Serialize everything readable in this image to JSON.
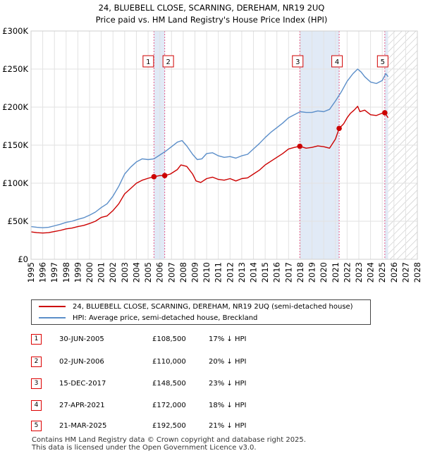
{
  "colors": {
    "price_line": "#cc0000",
    "hpi_line": "#5b8ec9",
    "marker_line": "#e35b8a",
    "shade": "#dce6f5"
  },
  "chart_data": {
    "type": "line",
    "title": "24, BLUEBELL CLOSE, SCARNING, DEREHAM, NR19 2UQ",
    "subtitle": "Price paid vs. HM Land Registry's House Price Index (HPI)",
    "xlim": [
      1995,
      2028
    ],
    "ylim": [
      0,
      300000
    ],
    "y_ticks": [
      {
        "value": 0,
        "label": "£0"
      },
      {
        "value": 50000,
        "label": "£50K"
      },
      {
        "value": 100000,
        "label": "£100K"
      },
      {
        "value": 150000,
        "label": "£150K"
      },
      {
        "value": 200000,
        "label": "£200K"
      },
      {
        "value": 250000,
        "label": "£250K"
      },
      {
        "value": 300000,
        "label": "£300K"
      }
    ],
    "x_ticks": [
      "1995",
      "1996",
      "1997",
      "1998",
      "1999",
      "2000",
      "2001",
      "2002",
      "2003",
      "2004",
      "2005",
      "2006",
      "2007",
      "2008",
      "2009",
      "2010",
      "2011",
      "2012",
      "2013",
      "2014",
      "2015",
      "2016",
      "2017",
      "2018",
      "2019",
      "2020",
      "2021",
      "2022",
      "2023",
      "2024",
      "2025",
      "2026",
      "2027",
      "2028"
    ],
    "forecast_start": 2025.5,
    "series": [
      {
        "name": "24, BLUEBELL CLOSE, SCARNING, DEREHAM, NR19 2UQ (semi-detached house)",
        "x": [
          1995.0,
          1995.5,
          1996.0,
          1996.5,
          1997.0,
          1997.5,
          1998.0,
          1998.5,
          1999.0,
          1999.5,
          2000.0,
          2000.5,
          2001.0,
          2001.5,
          2002.0,
          2002.5,
          2003.0,
          2003.5,
          2004.0,
          2004.5,
          2005.0,
          2005.5,
          2006.0,
          2006.42,
          2006.9,
          2007.5,
          2007.8,
          2008.3,
          2008.8,
          2009.1,
          2009.5,
          2010.0,
          2010.5,
          2011.0,
          2011.5,
          2012.0,
          2012.5,
          2013.0,
          2013.5,
          2014.0,
          2014.5,
          2015.0,
          2015.5,
          2016.0,
          2016.5,
          2017.0,
          2017.5,
          2017.96,
          2018.5,
          2019.0,
          2019.5,
          2020.0,
          2020.5,
          2021.0,
          2021.32,
          2021.7,
          2022.0,
          2022.3,
          2022.6,
          2022.9,
          2023.1,
          2023.5,
          2024.0,
          2024.5,
          2025.0,
          2025.22,
          2025.5
        ],
        "values": [
          36000,
          35000,
          34500,
          35000,
          36500,
          38000,
          40000,
          41000,
          43000,
          44500,
          47000,
          50000,
          55000,
          57000,
          64000,
          73000,
          86000,
          93000,
          100000,
          104000,
          106500,
          108500,
          110000,
          110000,
          112000,
          118000,
          124000,
          122000,
          112000,
          103000,
          101000,
          106000,
          108000,
          105000,
          104000,
          106000,
          103000,
          106000,
          107000,
          112000,
          117000,
          124000,
          129000,
          134000,
          139000,
          145000,
          147000,
          148500,
          146000,
          147000,
          149000,
          148000,
          146000,
          158000,
          172000,
          178000,
          186000,
          192000,
          196000,
          201000,
          194000,
          196000,
          190000,
          189000,
          192000,
          192500,
          186000
        ]
      },
      {
        "name": "HPI: Average price, semi-detached house, Breckland",
        "x": [
          1995.0,
          1995.5,
          1996.0,
          1996.5,
          1997.0,
          1997.5,
          1998.0,
          1998.5,
          1999.0,
          1999.5,
          2000.0,
          2000.5,
          2001.0,
          2001.5,
          2002.0,
          2002.5,
          2003.0,
          2003.5,
          2004.0,
          2004.5,
          2005.0,
          2005.5,
          2006.0,
          2006.5,
          2007.0,
          2007.5,
          2007.9,
          2008.3,
          2008.8,
          2009.2,
          2009.6,
          2010.0,
          2010.5,
          2011.0,
          2011.5,
          2012.0,
          2012.5,
          2013.0,
          2013.5,
          2014.0,
          2014.5,
          2015.0,
          2015.5,
          2016.0,
          2016.5,
          2017.0,
          2017.5,
          2018.0,
          2018.5,
          2019.0,
          2019.5,
          2020.0,
          2020.5,
          2021.0,
          2021.5,
          2022.0,
          2022.5,
          2022.9,
          2023.2,
          2023.5,
          2024.0,
          2024.5,
          2025.0,
          2025.3,
          2025.5
        ],
        "values": [
          43000,
          42000,
          41500,
          42000,
          44000,
          46000,
          48500,
          50000,
          52500,
          54500,
          58000,
          62000,
          68000,
          73000,
          83000,
          96000,
          112000,
          121000,
          128000,
          132000,
          131000,
          132000,
          137000,
          142000,
          148000,
          154000,
          156000,
          149000,
          138000,
          131000,
          132000,
          139000,
          140000,
          136000,
          134000,
          135000,
          133000,
          136000,
          138000,
          145000,
          152000,
          160000,
          167000,
          173000,
          179000,
          186000,
          190000,
          194000,
          193000,
          193000,
          195000,
          194000,
          197000,
          208000,
          220000,
          234000,
          244000,
          250000,
          246000,
          240000,
          233000,
          231000,
          235000,
          244000,
          240000
        ]
      }
    ],
    "sales": [
      {
        "id": "1",
        "x": 2005.5,
        "value": 108500
      },
      {
        "id": "2",
        "x": 2006.42,
        "value": 110000
      },
      {
        "id": "3",
        "x": 2017.96,
        "value": 148500
      },
      {
        "id": "4",
        "x": 2021.32,
        "value": 172000
      },
      {
        "id": "5",
        "x": 2025.22,
        "value": 192500
      }
    ]
  },
  "legend": {
    "price_label": "24, BLUEBELL CLOSE, SCARNING, DEREHAM, NR19 2UQ (semi-detached house)",
    "hpi_label": "HPI: Average price, semi-detached house, Breckland"
  },
  "transactions": [
    {
      "id": "1",
      "date": "30-JUN-2005",
      "price": "£108,500",
      "diff": "17% ↓ HPI"
    },
    {
      "id": "2",
      "date": "02-JUN-2006",
      "price": "£110,000",
      "diff": "20% ↓ HPI"
    },
    {
      "id": "3",
      "date": "15-DEC-2017",
      "price": "£148,500",
      "diff": "23% ↓ HPI"
    },
    {
      "id": "4",
      "date": "27-APR-2021",
      "price": "£172,000",
      "diff": "18% ↓ HPI"
    },
    {
      "id": "5",
      "date": "21-MAR-2025",
      "price": "£192,500",
      "diff": "21% ↓ HPI"
    }
  ],
  "footer": {
    "line1": "Contains HM Land Registry data © Crown copyright and database right 2025.",
    "line2": "This data is licensed under the Open Government Licence v3.0."
  }
}
